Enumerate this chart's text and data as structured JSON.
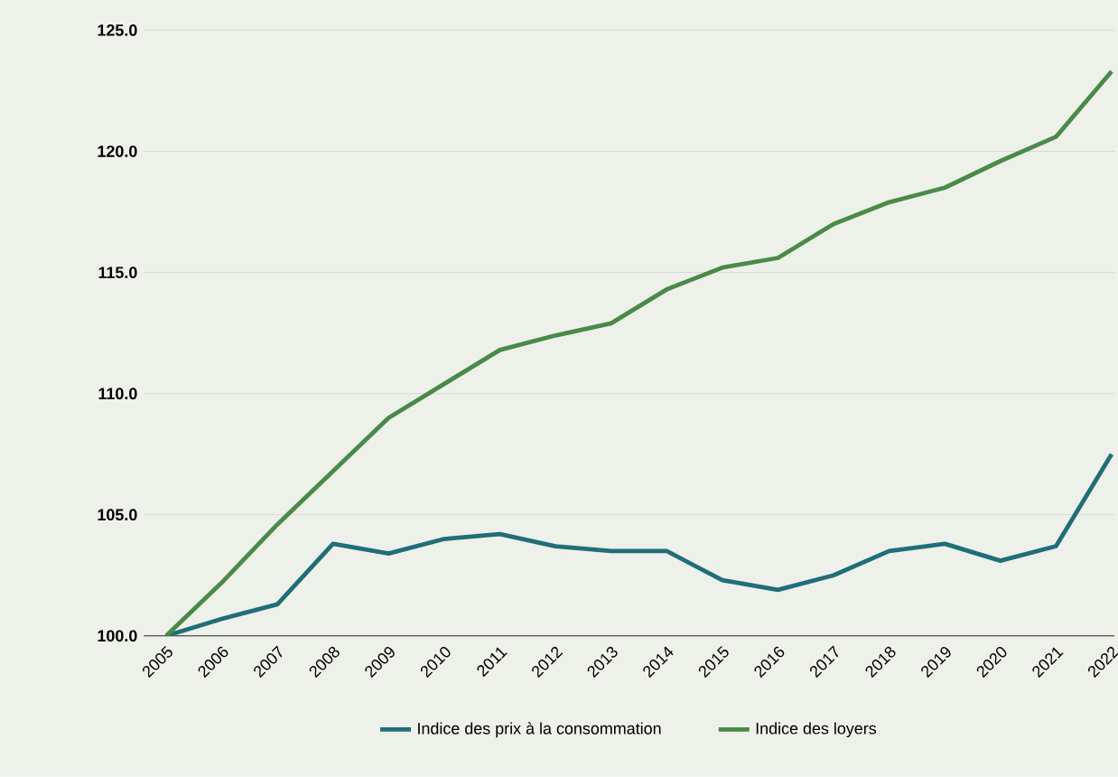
{
  "chart_data": {
    "type": "line",
    "categories": [
      "2005",
      "2006",
      "2007",
      "2008",
      "2009",
      "2010",
      "2011",
      "2012",
      "2013",
      "2014",
      "2015",
      "2016",
      "2017",
      "2018",
      "2019",
      "2020",
      "2021",
      "2022"
    ],
    "series": [
      {
        "name": "Indice des prix à la consommation",
        "color": "#1f6e78",
        "values": [
          100.0,
          100.7,
          101.3,
          103.8,
          103.4,
          104.0,
          104.2,
          103.7,
          103.5,
          103.5,
          102.3,
          101.9,
          102.5,
          103.5,
          103.8,
          103.1,
          103.7,
          107.5
        ]
      },
      {
        "name": "Indice des loyers",
        "color": "#4a8a48",
        "values": [
          100.0,
          102.2,
          104.6,
          106.8,
          109.0,
          110.4,
          111.8,
          112.4,
          112.9,
          114.3,
          115.2,
          115.6,
          117.0,
          117.9,
          118.5,
          119.6,
          120.6,
          123.3
        ]
      }
    ],
    "ylim": [
      100,
      125
    ],
    "yticks": [
      {
        "value": 100,
        "label": "100.0"
      },
      {
        "value": 105,
        "label": "105.0"
      },
      {
        "value": 110,
        "label": "110.0"
      },
      {
        "value": 115,
        "label": "115.0"
      },
      {
        "value": 120,
        "label": "120.0"
      },
      {
        "value": 125,
        "label": "125.0"
      }
    ],
    "grid": "y",
    "legend": "bottom",
    "marker": "none",
    "line_style": "solid"
  }
}
